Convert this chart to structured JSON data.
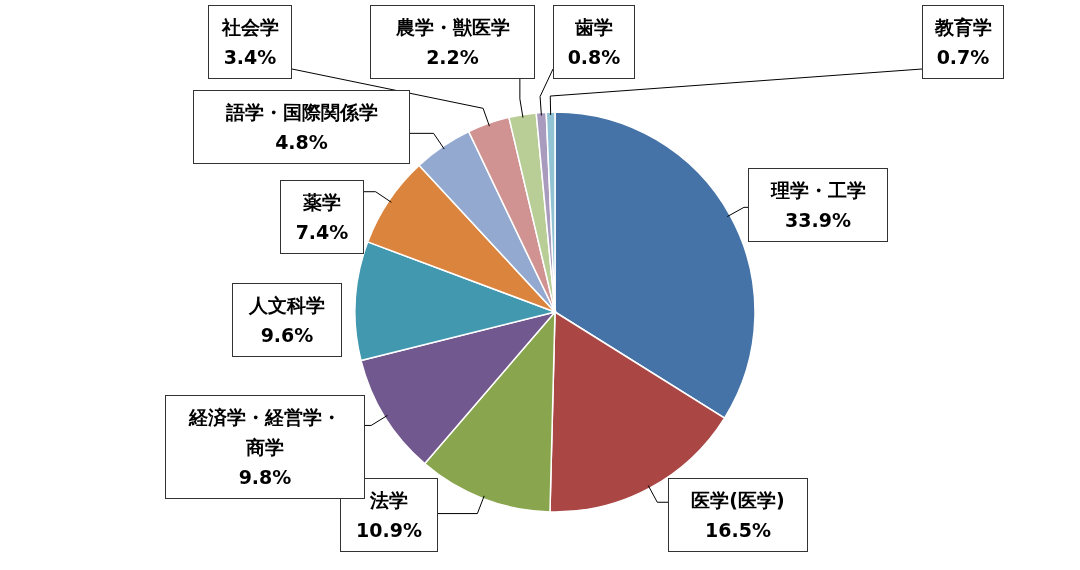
{
  "chart_data": {
    "type": "pie",
    "categories": [
      "理学・工学",
      "医学(医学)",
      "法学",
      "経済学・経営学・商学",
      "人文科学",
      "薬学",
      "語学・国際関係学",
      "社会学",
      "農学・獣医学",
      "歯学",
      "教育学"
    ],
    "values": [
      33.9,
      16.5,
      10.9,
      9.8,
      9.6,
      7.4,
      4.8,
      3.4,
      2.2,
      0.8,
      0.7
    ],
    "value_labels": [
      "33.9%",
      "16.5%",
      "10.9%",
      "9.8%",
      "9.6%",
      "7.4%",
      "4.8%",
      "3.4%",
      "2.2%",
      "0.8%",
      "0.7%"
    ],
    "colors": [
      "#4573a7",
      "#aa4644",
      "#89a54e",
      "#71588f",
      "#4198af",
      "#db843d",
      "#93a9cf",
      "#d19392",
      "#b9cd96",
      "#a99bbd",
      "#92c3d5"
    ],
    "legend": false
  }
}
